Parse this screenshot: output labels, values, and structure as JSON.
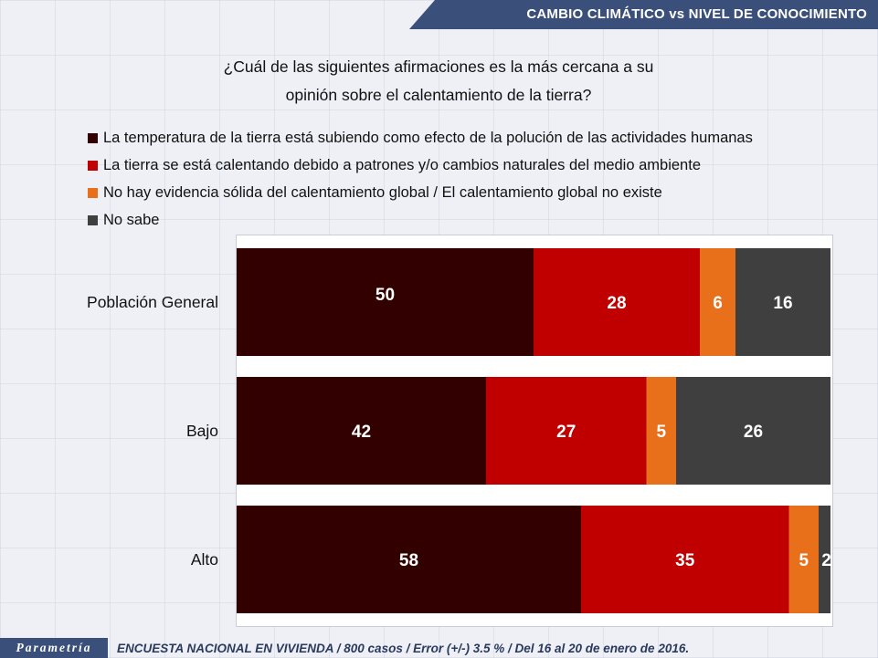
{
  "header": {
    "title": "CAMBIO CLIMÁTICO vs NIVEL DE CONOCIMIENTO"
  },
  "question": {
    "line1": "¿Cuál de las siguientes afirmaciones es la más cercana a su",
    "line2": "opinión sobre el calentamiento de la tierra?"
  },
  "footer": {
    "logo": "Parametría",
    "text": "ENCUESTA NACIONAL EN VIVIENDA / 800 casos / Error (+/-) 3.5 % / Del 16 al 20 de enero de 2016."
  },
  "colors": {
    "series1": "#330000",
    "series2": "#c00000",
    "series3": "#e8701a",
    "series4": "#3f3f3f",
    "header": "#3a4f7a"
  },
  "chart_data": {
    "type": "bar",
    "orientation": "horizontal",
    "stacked": true,
    "categories": [
      "Población General",
      "Bajo",
      "Alto"
    ],
    "series": [
      {
        "name": "La temperatura de la tierra está subiendo como efecto de la polución de las actividades humanas",
        "values": [
          50,
          42,
          58
        ],
        "color": "#330000"
      },
      {
        "name": "La tierra se está calentando debido a patrones y/o cambios naturales del medio ambiente",
        "values": [
          28,
          27,
          35
        ],
        "color": "#c00000"
      },
      {
        "name": "No hay evidencia sólida del calentamiento global / El calentamiento global no existe",
        "values": [
          6,
          5,
          5
        ],
        "color": "#e8701a"
      },
      {
        "name": "No sabe",
        "values": [
          16,
          26,
          2
        ],
        "color": "#3f3f3f"
      }
    ],
    "xlim": [
      0,
      100
    ],
    "legend_position": "top",
    "grid": false
  }
}
